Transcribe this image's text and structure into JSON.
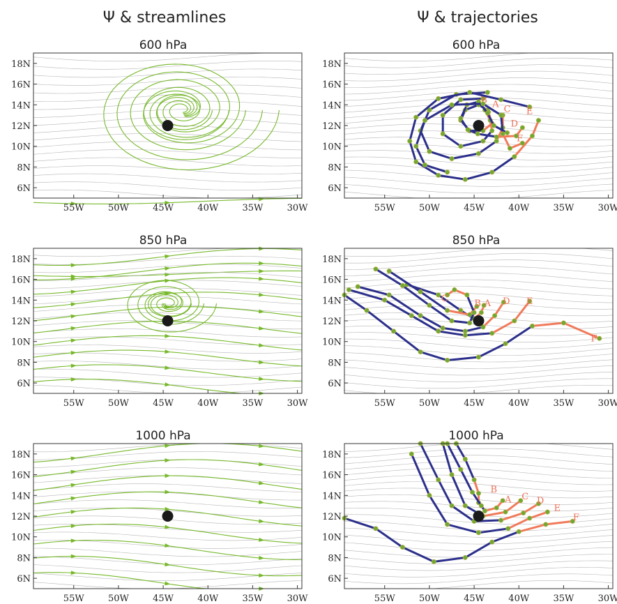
{
  "columns": [
    {
      "title": "Ψ & streamlines"
    },
    {
      "title": "Ψ & trajectories"
    }
  ],
  "panels": [
    {
      "level": "600 hPa"
    },
    {
      "level": "850 hPa"
    },
    {
      "level": "1000 hPa"
    }
  ],
  "axes": {
    "x_ticks": [
      "55W",
      "50W",
      "45W",
      "40W",
      "35W",
      "30W"
    ],
    "y_ticks": [
      "18N",
      "16N",
      "14N",
      "12N",
      "10N",
      "8N",
      "6N"
    ],
    "xlim": [
      -59.5,
      -29.5
    ],
    "ylim": [
      5,
      19
    ]
  },
  "colors": {
    "streamline": "#76b82a",
    "isoline": "#b5b5b5",
    "trajectory_early": "#2b2f8a",
    "trajectory_late": "#f07a5a",
    "center": "#1a1a1a"
  },
  "center": {
    "lon": -44.5,
    "lat": 12.0
  },
  "trajectories": [
    {
      "level": "600 hPa",
      "parcels": [
        {
          "label": "A",
          "label_pos": [
            -42.6,
            13.8
          ],
          "points": [
            [
              -43.5,
              13.5
            ],
            [
              -44.5,
              14.0
            ],
            [
              -46,
              13.5
            ],
            [
              -46.5,
              12.5
            ],
            [
              -45.5,
              11.5
            ],
            [
              -44,
              11.5
            ],
            [
              -43,
              12.2
            ],
            [
              -43.4,
              13.3
            ]
          ]
        },
        {
          "label": "B",
          "label_pos": [
            -43.9,
            14.2
          ],
          "points": [
            [
              -44,
              14.6
            ],
            [
              -46.5,
              14.5
            ],
            [
              -48.5,
              13.0
            ],
            [
              -48.5,
              11.2
            ],
            [
              -46.5,
              10.0
            ],
            [
              -44,
              10.5
            ],
            [
              -43,
              11.5
            ],
            [
              -43.2,
              12.5
            ],
            [
              -43.8,
              13.5
            ]
          ]
        },
        {
          "label": "C",
          "label_pos": [
            -41.3,
            13.3
          ],
          "points": [
            [
              -43.5,
              15.2
            ],
            [
              -47,
              15.0
            ],
            [
              -50,
              13.5
            ],
            [
              -51,
              11.5
            ],
            [
              -50,
              9.5
            ],
            [
              -47.5,
              8.8
            ],
            [
              -44.5,
              9.3
            ],
            [
              -42.5,
              10.5
            ],
            [
              -41.8,
              11.8
            ],
            [
              -41.8,
              13.0
            ]
          ]
        },
        {
          "label": "E",
          "label_pos": [
            -38.8,
            13.1
          ],
          "points": [
            [
              -38.8,
              13.8
            ],
            [
              -42,
              14.5
            ],
            [
              -45.5,
              15.2
            ],
            [
              -49,
              14.6
            ],
            [
              -51.5,
              12.8
            ],
            [
              -52.2,
              10.5
            ],
            [
              -51.5,
              8.5
            ],
            [
              -49,
              7.2
            ],
            [
              -46,
              6.8
            ],
            [
              -43,
              7.5
            ],
            [
              -40.5,
              9.0
            ],
            [
              -38.5,
              11.0
            ],
            [
              -37.8,
              12.5
            ]
          ]
        },
        {
          "label": "D",
          "label_pos": [
            -40.5,
            11.9
          ],
          "points": [
            [
              -41.3,
              11.3
            ],
            [
              -42.8,
              12.0
            ],
            [
              -43.5,
              13.2
            ],
            [
              -44.5,
              14.3
            ],
            [
              -45.8,
              14.0
            ],
            [
              -46.5,
              12.7
            ],
            [
              -45.7,
              11.6
            ],
            [
              -44.6,
              11.2
            ],
            [
              -42.5,
              10.9
            ],
            [
              -40.3,
              11.0
            ],
            [
              -39.6,
              11.8
            ]
          ]
        },
        {
          "label": "F",
          "label_pos": [
            -39.9,
            10.5
          ],
          "points": [
            [
              -48,
              7.5
            ],
            [
              -50.5,
              8.2
            ],
            [
              -51.5,
              10.0
            ],
            [
              -50.5,
              12.5
            ],
            [
              -47.5,
              14.0
            ],
            [
              -44,
              14.1
            ],
            [
              -42,
              13.0
            ],
            [
              -41.8,
              11.2
            ],
            [
              -41.0,
              9.8
            ],
            [
              -39.6,
              10.3
            ]
          ]
        }
      ]
    },
    {
      "level": "850 hPa",
      "parcels": [
        {
          "label": "A",
          "label_pos": [
            -43.5,
            13.4
          ],
          "points": [
            [
              -52.5,
              15.5
            ],
            [
              -49,
              14.5
            ],
            [
              -46.5,
              13.0
            ],
            [
              -45,
              12.2
            ],
            [
              -44.2,
              12.8
            ],
            [
              -43.9,
              13.5
            ]
          ]
        },
        {
          "label": "B",
          "label_pos": [
            -44.6,
            13.4
          ],
          "points": [
            [
              -54.5,
              16.8
            ],
            [
              -51,
              14.8
            ],
            [
              -48,
              13.0
            ],
            [
              -45.5,
              12.6
            ],
            [
              -44.7,
              13.4
            ]
          ]
        },
        {
          "label": "C",
          "label_pos": [
            -48.3,
            13.9
          ],
          "points": [
            [
              -56,
              17.0
            ],
            [
              -53,
              15.4
            ],
            [
              -50,
              13.5
            ],
            [
              -47.5,
              12.0
            ],
            [
              -45.5,
              11.8
            ],
            [
              -45.0,
              12.8
            ],
            [
              -45.8,
              14.5
            ],
            [
              -47.2,
              15.0
            ],
            [
              -48.0,
              14.5
            ]
          ]
        },
        {
          "label": "D",
          "label_pos": [
            -41.4,
            13.6
          ],
          "points": [
            [
              -58,
              15.3
            ],
            [
              -54.5,
              14.5
            ],
            [
              -51,
              12.5
            ],
            [
              -48.5,
              11.3
            ],
            [
              -46,
              11.0
            ],
            [
              -44,
              11.4
            ],
            [
              -42.7,
              12.5
            ],
            [
              -41.7,
              13.8
            ]
          ]
        },
        {
          "label": "E",
          "label_pos": [
            -38.8,
            13.6
          ],
          "points": [
            [
              -59,
              15.0
            ],
            [
              -55,
              14.0
            ],
            [
              -52,
              12.5
            ],
            [
              -49,
              11.0
            ],
            [
              -46,
              10.6
            ],
            [
              -43,
              10.8
            ],
            [
              -40.5,
              12.0
            ],
            [
              -38.8,
              13.9
            ]
          ]
        },
        {
          "label": "F",
          "label_pos": [
            -31.6,
            10.0
          ],
          "points": [
            [
              -59.5,
              14.5
            ],
            [
              -57,
              13.0
            ],
            [
              -54,
              11.0
            ],
            [
              -51,
              9.0
            ],
            [
              -48,
              8.2
            ],
            [
              -44.5,
              8.5
            ],
            [
              -41.5,
              9.8
            ],
            [
              -38.5,
              11.5
            ],
            [
              -35,
              11.8
            ],
            [
              -31,
              10.3
            ]
          ]
        }
      ]
    },
    {
      "level": "1000 hPa",
      "parcels": [
        {
          "label": "B",
          "label_pos": [
            -42.8,
            14.3
          ],
          "points": [
            [
              -47,
              19.0
            ],
            [
              -46,
              17.5
            ],
            [
              -45,
              15.5
            ],
            [
              -44.5,
              14.2
            ],
            [
              -44.5,
              13.3
            ]
          ]
        },
        {
          "label": "A",
          "label_pos": [
            -41.2,
            13.3
          ],
          "points": [
            [
              -48,
              19.0
            ],
            [
              -46.5,
              16.5
            ],
            [
              -45.2,
              14.3
            ],
            [
              -44.2,
              13.0
            ],
            [
              -43.8,
              12.5
            ],
            [
              -42.5,
              12.8
            ],
            [
              -41.8,
              13.5
            ]
          ]
        },
        {
          "label": "C",
          "label_pos": [
            -39.3,
            13.6
          ],
          "points": [
            [
              -48.5,
              19.0
            ],
            [
              -47.5,
              16.0
            ],
            [
              -46.0,
              13.0
            ],
            [
              -44,
              12.0
            ],
            [
              -41.5,
              12.4
            ],
            [
              -39.8,
              13.5
            ]
          ]
        },
        {
          "label": "D",
          "label_pos": [
            -37.6,
            13.2
          ],
          "points": [
            [
              -51,
              19.0
            ],
            [
              -49,
              15.5
            ],
            [
              -47.5,
              13.0
            ],
            [
              -45,
              11.5
            ],
            [
              -42,
              11.6
            ],
            [
              -39.5,
              12.3
            ],
            [
              -37.8,
              13.2
            ]
          ]
        },
        {
          "label": "E",
          "label_pos": [
            -35.7,
            12.5
          ],
          "points": [
            [
              -52,
              18.0
            ],
            [
              -50,
              14.0
            ],
            [
              -48,
              11.2
            ],
            [
              -44.5,
              10.4
            ],
            [
              -41.2,
              10.8
            ],
            [
              -38.8,
              11.8
            ],
            [
              -36.8,
              12.4
            ]
          ]
        },
        {
          "label": "F",
          "label_pos": [
            -33.6,
            11.6
          ],
          "points": [
            [
              -59.5,
              11.8
            ],
            [
              -56,
              10.8
            ],
            [
              -53,
              9.0
            ],
            [
              -49.5,
              7.6
            ],
            [
              -46,
              8.0
            ],
            [
              -43,
              9.5
            ],
            [
              -40,
              10.5
            ],
            [
              -37,
              11.2
            ],
            [
              -34,
              11.5
            ]
          ]
        }
      ]
    }
  ]
}
